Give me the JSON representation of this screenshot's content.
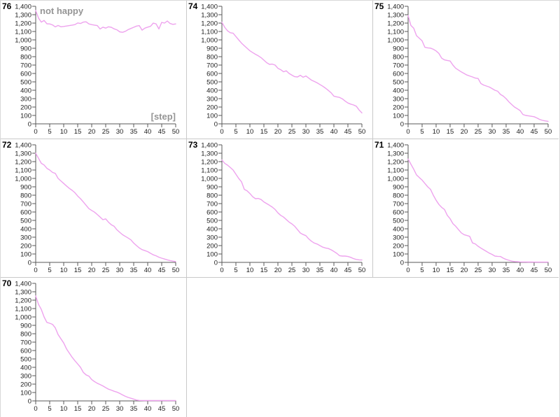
{
  "window": {
    "background": "#ffffff",
    "divider_color": "#c9c9c9",
    "frame_color": "#d8d8d8"
  },
  "chart_style": {
    "line_color": "#eea3ee",
    "axis_color": "#5a5a5a",
    "tick_label_color": "#1c1c1c",
    "run_label_color": "#000000",
    "annotation_color": "#959595"
  },
  "axes": {
    "x_ticks": [
      "0",
      "5",
      "10",
      "15",
      "20",
      "25",
      "30",
      "35",
      "40",
      "45",
      "50"
    ],
    "y_ticks": [
      "0",
      "100",
      "200",
      "300",
      "400",
      "500",
      "600",
      "700",
      "800",
      "900",
      "1,000",
      "1,100",
      "1,200",
      "1,300",
      "1,400"
    ],
    "x_range": [
      0,
      50
    ],
    "y_range": [
      0,
      1400
    ],
    "grid": false,
    "legend": "none"
  },
  "chart_data": [
    {
      "type": "line",
      "run_label": "76",
      "title": "not happy",
      "xlabel": "[step]",
      "grid": {
        "row": 0,
        "col": 0
      },
      "values": [
        1350,
        1260,
        1212,
        1232,
        1192,
        1190,
        1178,
        1155,
        1172,
        1156,
        1160,
        1165,
        1170,
        1176,
        1182,
        1202,
        1195,
        1212,
        1215,
        1190,
        1182,
        1176,
        1170,
        1130,
        1152,
        1140,
        1156,
        1150,
        1132,
        1120,
        1096,
        1090,
        1102,
        1122,
        1136,
        1150,
        1164,
        1170,
        1116,
        1140,
        1152,
        1162,
        1200,
        1190,
        1130,
        1208,
        1200,
        1225,
        1195,
        1185,
        1190
      ]
    },
    {
      "type": "line",
      "run_label": "74",
      "title": "",
      "xlabel": "",
      "grid": {
        "row": 0,
        "col": 1
      },
      "values": [
        1210,
        1150,
        1108,
        1085,
        1080,
        1040,
        1000,
        962,
        930,
        900,
        870,
        848,
        828,
        810,
        788,
        758,
        728,
        708,
        712,
        700,
        662,
        645,
        620,
        632,
        600,
        580,
        562,
        558,
        578,
        555,
        570,
        545,
        520,
        505,
        488,
        468,
        448,
        425,
        398,
        370,
        330,
        322,
        315,
        298,
        272,
        248,
        235,
        225,
        210,
        165,
        130
      ]
    },
    {
      "type": "line",
      "run_label": "75",
      "title": "",
      "xlabel": "",
      "grid": {
        "row": 0,
        "col": 2
      },
      "values": [
        1290,
        1172,
        1140,
        1050,
        1020,
        988,
        912,
        905,
        902,
        888,
        868,
        838,
        782,
        762,
        755,
        748,
        700,
        662,
        640,
        618,
        600,
        582,
        570,
        558,
        545,
        540,
        480,
        462,
        450,
        438,
        420,
        400,
        388,
        350,
        330,
        300,
        262,
        230,
        200,
        180,
        158,
        112,
        100,
        95,
        90,
        85,
        70,
        52,
        42,
        35,
        30
      ]
    },
    {
      "type": "line",
      "run_label": "72",
      "title": "",
      "xlabel": "",
      "grid": {
        "row": 1,
        "col": 0
      },
      "values": [
        1300,
        1240,
        1180,
        1160,
        1120,
        1100,
        1072,
        1060,
        1000,
        970,
        940,
        910,
        882,
        858,
        830,
        790,
        758,
        720,
        680,
        640,
        618,
        598,
        570,
        540,
        508,
        518,
        478,
        448,
        430,
        388,
        358,
        330,
        310,
        290,
        268,
        230,
        200,
        172,
        152,
        140,
        128,
        108,
        90,
        78,
        62,
        50,
        40,
        30,
        22,
        15,
        10
      ]
    },
    {
      "type": "line",
      "run_label": "73",
      "title": "",
      "xlabel": "",
      "grid": {
        "row": 1,
        "col": 1
      },
      "values": [
        1220,
        1180,
        1158,
        1130,
        1100,
        1050,
        1000,
        960,
        870,
        852,
        820,
        782,
        758,
        762,
        748,
        720,
        700,
        680,
        658,
        630,
        590,
        560,
        540,
        510,
        480,
        458,
        430,
        390,
        350,
        332,
        318,
        280,
        252,
        230,
        218,
        200,
        182,
        172,
        165,
        150,
        130,
        108,
        80,
        75,
        75,
        70,
        60,
        45,
        35,
        30,
        28
      ]
    },
    {
      "type": "line",
      "run_label": "71",
      "title": "",
      "xlabel": "",
      "grid": {
        "row": 1,
        "col": 2
      },
      "values": [
        1230,
        1170,
        1110,
        1042,
        1010,
        980,
        940,
        900,
        870,
        800,
        740,
        690,
        655,
        630,
        560,
        520,
        462,
        430,
        390,
        352,
        330,
        320,
        310,
        232,
        220,
        192,
        170,
        150,
        130,
        110,
        95,
        75,
        72,
        70,
        50,
        35,
        25,
        15,
        10,
        8,
        6,
        5,
        5,
        4,
        4,
        3,
        3,
        3,
        3,
        3,
        3
      ]
    },
    {
      "type": "line",
      "run_label": "70",
      "title": "",
      "xlabel": "",
      "grid": {
        "row": 2,
        "col": 0
      },
      "values": [
        1250,
        1150,
        1090,
        1000,
        935,
        925,
        912,
        870,
        790,
        740,
        690,
        620,
        570,
        520,
        478,
        440,
        400,
        340,
        310,
        295,
        255,
        230,
        210,
        195,
        178,
        158,
        140,
        128,
        115,
        105,
        90,
        72,
        55,
        42,
        32,
        22,
        10,
        6,
        5,
        4,
        4,
        4,
        4,
        4,
        4,
        4,
        4,
        4,
        4,
        4,
        4
      ]
    }
  ]
}
